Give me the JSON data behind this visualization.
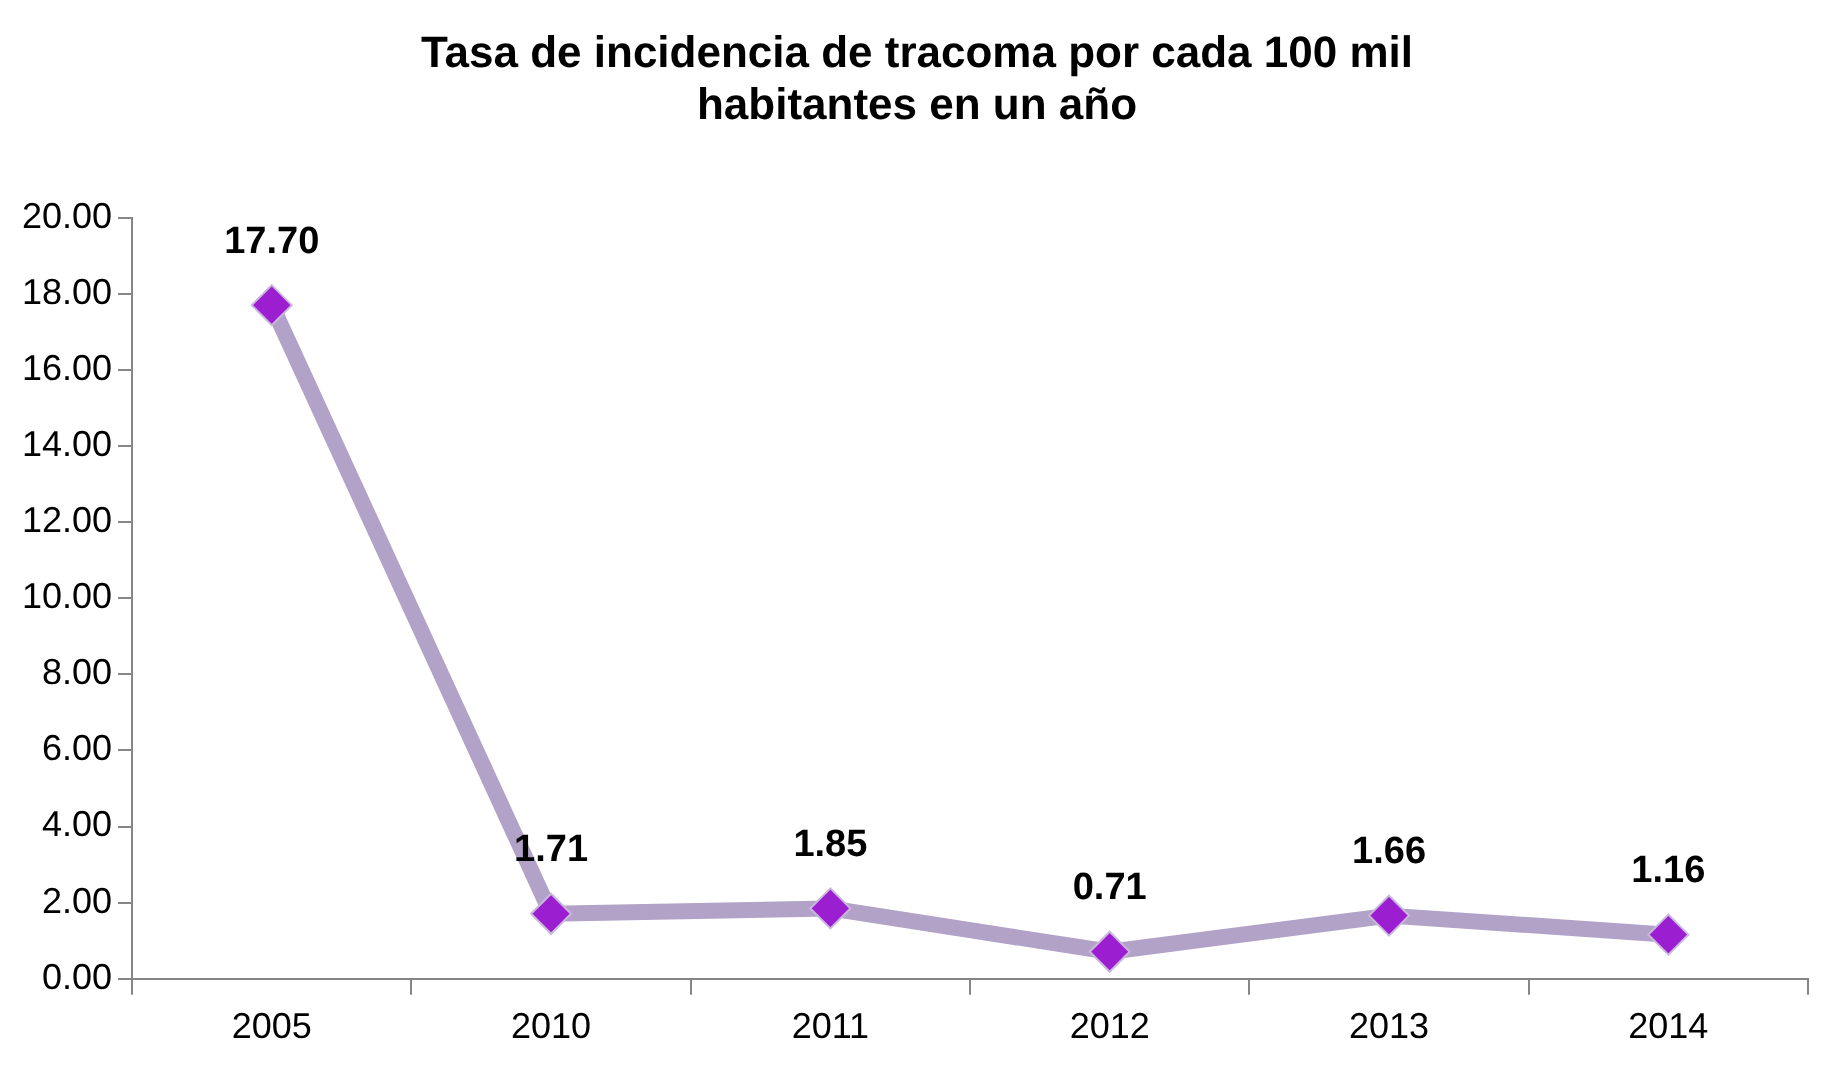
{
  "chart_data": {
    "type": "line",
    "title": "Tasa de incidencia de tracoma por cada 100 mil habitantes en un año",
    "categories": [
      "2005",
      "2010",
      "2011",
      "2012",
      "2013",
      "2014"
    ],
    "series": [
      {
        "color": "#b3a2c7",
        "colors": [
          "#9b1fd1",
          "#9b1fd1",
          "#9b1fd1",
          "#9b1fd1",
          "#9b1fd1",
          "#9b1fd1"
        ],
        "values": [
          17.7,
          1.71,
          1.85,
          0.71,
          1.66,
          1.16
        ],
        "value_labels": [
          "17.70",
          "1.71",
          "1.85",
          "0.71",
          "1.66",
          "1.16"
        ]
      }
    ],
    "ylim": [
      0,
      20
    ],
    "yticks": [
      {
        "value": 0,
        "label": "0.00"
      },
      {
        "value": 2,
        "label": "2.00"
      },
      {
        "value": 4,
        "label": "4.00"
      },
      {
        "value": 6,
        "label": "6.00"
      },
      {
        "value": 8,
        "label": "8.00"
      },
      {
        "value": 10,
        "label": "10.00"
      },
      {
        "value": 12,
        "label": "12.00"
      },
      {
        "value": 14,
        "label": "14.00"
      },
      {
        "value": 16,
        "label": "16.00"
      },
      {
        "value": 18,
        "label": "18.00"
      },
      {
        "value": 20,
        "label": "20.00"
      }
    ],
    "marker": "diamond",
    "line_style": "solid",
    "legend": false
  }
}
